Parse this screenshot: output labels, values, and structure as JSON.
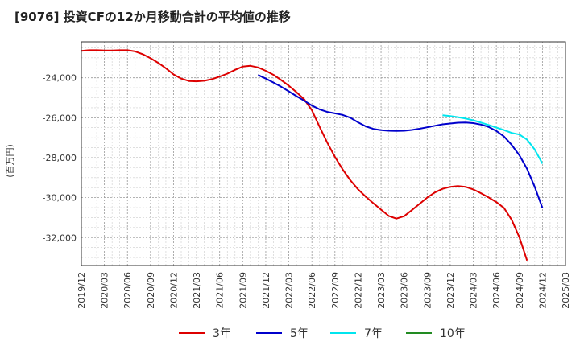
{
  "chart_data": {
    "type": "line",
    "title": "[9076]  投資CFの12か月移動合計の平均値の推移",
    "ylabel": "(百万円)",
    "xlabel": "",
    "x_ticks": [
      "2019/12",
      "2020/03",
      "2020/06",
      "2020/09",
      "2020/12",
      "2021/03",
      "2021/06",
      "2021/09",
      "2021/12",
      "2022/03",
      "2022/06",
      "2022/09",
      "2022/12",
      "2023/03",
      "2023/06",
      "2023/09",
      "2023/12",
      "2024/03",
      "2024/06",
      "2024/09",
      "2024/12",
      "2025/03"
    ],
    "y_ticks": [
      -24000,
      -26000,
      -28000,
      -30000,
      -32000
    ],
    "y_tick_labels": [
      "-24,000",
      "-26,000",
      "-28,000",
      "-30,000",
      "-32,000"
    ],
    "ylim": [
      -33400,
      -22200
    ],
    "grid": true,
    "legend_position": "bottom",
    "series": [
      {
        "name": "3年",
        "color": "#dd0000",
        "x": [
          "2019/12",
          "2020/01",
          "2020/02",
          "2020/03",
          "2020/04",
          "2020/05",
          "2020/06",
          "2020/07",
          "2020/08",
          "2020/09",
          "2020/10",
          "2020/11",
          "2020/12",
          "2021/01",
          "2021/02",
          "2021/03",
          "2021/04",
          "2021/05",
          "2021/06",
          "2021/07",
          "2021/08",
          "2021/09",
          "2021/10",
          "2021/11",
          "2021/12",
          "2022/01",
          "2022/02",
          "2022/03",
          "2022/04",
          "2022/05",
          "2022/06",
          "2022/07",
          "2022/08",
          "2022/09",
          "2022/10",
          "2022/11",
          "2022/12",
          "2023/01",
          "2023/02",
          "2023/03",
          "2023/04",
          "2023/05",
          "2023/06",
          "2023/07",
          "2023/08",
          "2023/09",
          "2023/10",
          "2023/11",
          "2023/12",
          "2024/01",
          "2024/02",
          "2024/03",
          "2024/04",
          "2024/05",
          "2024/06",
          "2024/07",
          "2024/08",
          "2024/09",
          "2024/10",
          "2024/11",
          "2024/12"
        ],
        "values": [
          -22650,
          -22620,
          -22620,
          -22630,
          -22630,
          -22620,
          -22620,
          -22680,
          -22820,
          -23020,
          -23250,
          -23520,
          -23830,
          -24040,
          -24160,
          -24180,
          -24150,
          -24070,
          -23940,
          -23790,
          -23600,
          -23440,
          -23400,
          -23480,
          -23650,
          -23850,
          -24110,
          -24400,
          -24720,
          -25080,
          -25630,
          -26450,
          -27250,
          -27960,
          -28580,
          -29130,
          -29580,
          -29950,
          -30280,
          -30600,
          -30920,
          -31050,
          -30930,
          -30630,
          -30320,
          -30000,
          -29740,
          -29560,
          -29460,
          -29420,
          -29460,
          -29590,
          -29780,
          -29990,
          -30220,
          -30520,
          -31110,
          -31990,
          -33150,
          null,
          null
        ],
        "note_x_offset": 0
      },
      {
        "name": "5年",
        "color": "#0000cc",
        "x": [
          "2021/11",
          "2021/12",
          "2022/01",
          "2022/02",
          "2022/03",
          "2022/04",
          "2022/05",
          "2022/06",
          "2022/07",
          "2022/08",
          "2022/09",
          "2022/10",
          "2022/11",
          "2022/12",
          "2023/01",
          "2023/02",
          "2023/03",
          "2023/04",
          "2023/05",
          "2023/06",
          "2023/07",
          "2023/08",
          "2023/09",
          "2023/10",
          "2023/11",
          "2023/12",
          "2024/01",
          "2024/02",
          "2024/03",
          "2024/04",
          "2024/05",
          "2024/06",
          "2024/07",
          "2024/08",
          "2024/09",
          "2024/10",
          "2024/11",
          "2024/12"
        ],
        "values": [
          -23860,
          -24040,
          -24240,
          -24450,
          -24680,
          -24920,
          -25150,
          -25390,
          -25580,
          -25710,
          -25780,
          -25860,
          -26000,
          -26230,
          -26430,
          -26560,
          -26620,
          -26650,
          -26660,
          -26650,
          -26610,
          -26550,
          -26480,
          -26400,
          -26330,
          -26290,
          -26250,
          -26240,
          -26270,
          -26340,
          -26460,
          -26660,
          -26940,
          -27360,
          -27880,
          -28560,
          -29460,
          -30520
        ]
      },
      {
        "name": "7年",
        "color": "#00e5ee",
        "x": [
          "2023/11",
          "2023/12",
          "2024/01",
          "2024/02",
          "2024/03",
          "2024/04",
          "2024/05",
          "2024/06",
          "2024/07",
          "2024/08",
          "2024/09",
          "2024/10",
          "2024/11",
          "2024/12"
        ],
        "values": [
          -25880,
          -25920,
          -25970,
          -26040,
          -26130,
          -26240,
          -26360,
          -26490,
          -26620,
          -26760,
          -26840,
          -27100,
          -27590,
          -28300
        ]
      },
      {
        "name": "10年",
        "color": "#228b22",
        "x": [],
        "values": []
      }
    ]
  }
}
